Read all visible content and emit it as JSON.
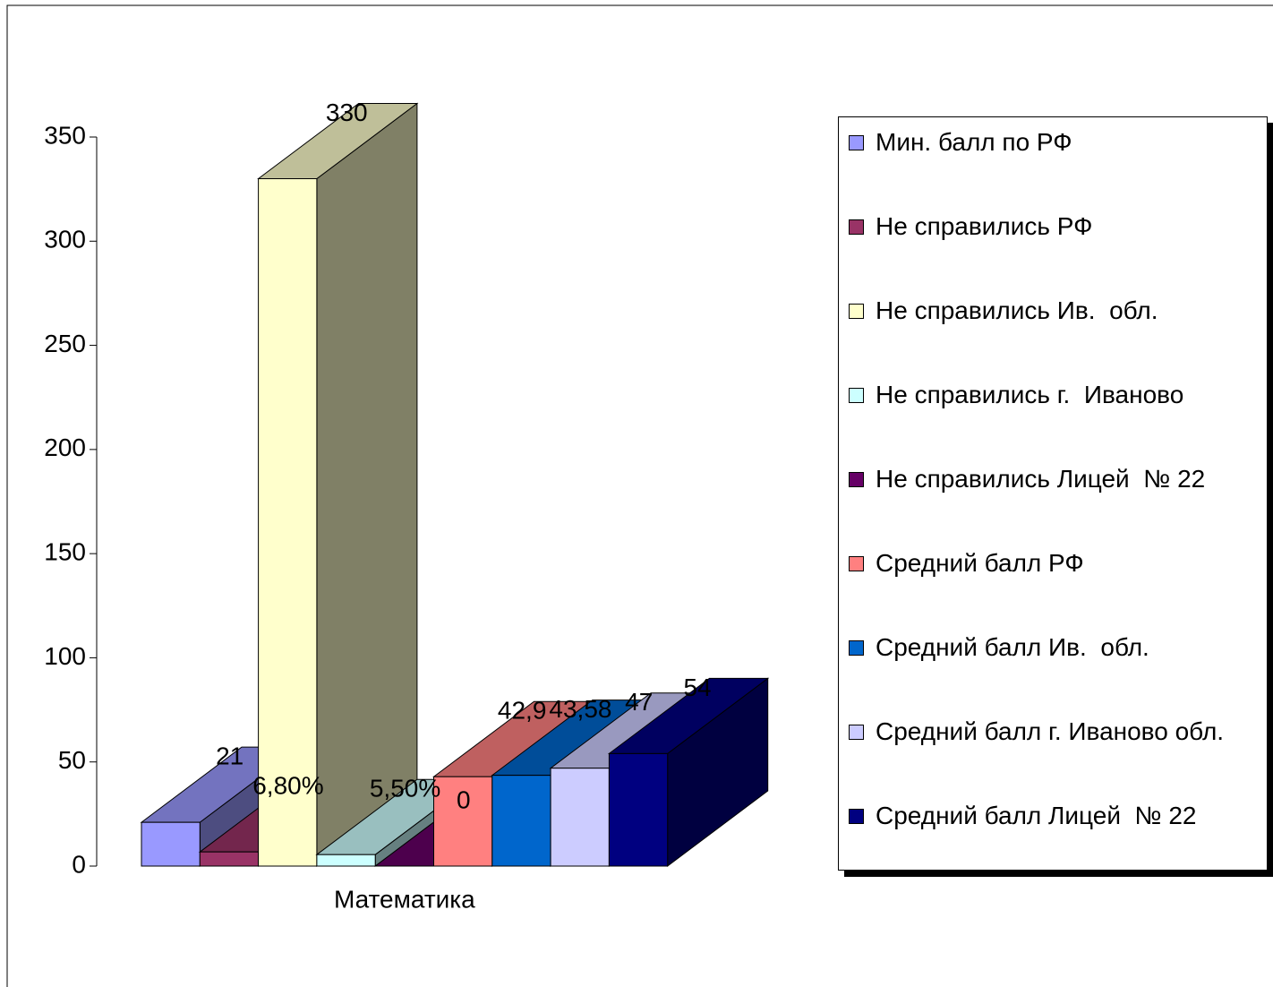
{
  "chart_data": {
    "type": "bar3d",
    "categories": [
      "Математика"
    ],
    "series": [
      {
        "name": "Мин. балл по РФ",
        "color": "#9999ff",
        "values": [
          21
        ]
      },
      {
        "name": "Не справились РФ",
        "color": "#993366",
        "values": [
          6.8
        ],
        "value_labels": [
          "6,80%"
        ]
      },
      {
        "name": "Не справились Ив.  обл.",
        "color": "#ffffcc",
        "values": [
          330
        ]
      },
      {
        "name": "Не справились г.  Иваново",
        "color": "#ccffff",
        "values": [
          5.5
        ],
        "value_labels": [
          "5,50%"
        ]
      },
      {
        "name": "Не справились Лицей  № 22",
        "color": "#660066",
        "values": [
          0
        ]
      },
      {
        "name": "Средний балл РФ",
        "color": "#ff8080",
        "values": [
          42.9
        ],
        "value_labels": [
          "42,9"
        ]
      },
      {
        "name": "Средний балл Ив.  обл.",
        "color": "#0066cc",
        "values": [
          43.58
        ],
        "value_labels": [
          "43,58"
        ]
      },
      {
        "name": "Средний балл г. Иваново обл.",
        "color": "#ccccff",
        "values": [
          47
        ]
      },
      {
        "name": "Средний балл Лицей  № 22",
        "color": "#000080",
        "values": [
          54
        ]
      }
    ],
    "ylim": [
      0,
      350
    ],
    "yticks": [
      0,
      50,
      100,
      150,
      200,
      250,
      300,
      350
    ]
  }
}
